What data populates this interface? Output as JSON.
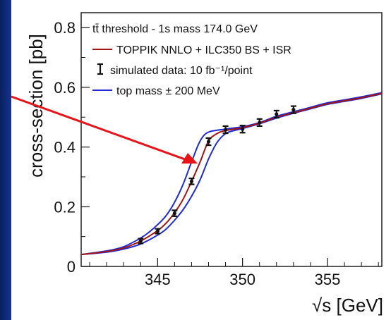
{
  "chart_data": {
    "type": "line",
    "title": "",
    "xlabel": "√s [GeV]",
    "ylabel": "cross-section [pb]",
    "xlim": [
      340.5,
      358.2
    ],
    "ylim": [
      0,
      0.85
    ],
    "x_ticks": [
      345,
      350,
      355
    ],
    "y_ticks": [
      0,
      0.2,
      0.4,
      0.6,
      0.8
    ],
    "x_tick_labels": [
      "345",
      "350",
      "355"
    ],
    "y_tick_labels": [
      "0",
      "0.2",
      "0.4",
      "0.6",
      "0.8"
    ],
    "legend": {
      "placement": "top-left",
      "header": "tt̄ threshold - 1s mass 174.0 GeV",
      "entries": [
        {
          "label": "TOPPIK NNLO + ILC350 BS + ISR",
          "color": "#a31515",
          "kind": "line"
        },
        {
          "label": "simulated data: 10 fb⁻¹/point",
          "color": "#111111",
          "kind": "errorbar"
        },
        {
          "label": "top mass ± 200 MeV",
          "color": "#1f2bd6",
          "kind": "line"
        }
      ]
    },
    "series": [
      {
        "name": "TOPPIK NNLO + ILC350 BS + ISR",
        "color": "#a31515",
        "x": [
          340.5,
          342,
          343,
          344,
          345,
          345.5,
          346,
          346.5,
          347,
          347.5,
          348,
          348.5,
          349,
          350,
          351,
          352,
          353,
          354,
          355,
          356,
          357,
          358.2
        ],
        "y": [
          0.04,
          0.05,
          0.062,
          0.085,
          0.12,
          0.145,
          0.18,
          0.225,
          0.285,
          0.35,
          0.42,
          0.445,
          0.455,
          0.465,
          0.48,
          0.5,
          0.515,
          0.53,
          0.545,
          0.555,
          0.565,
          0.58
        ]
      },
      {
        "name": "top mass + 200 MeV",
        "color": "#1f2bd6",
        "x": [
          340.5,
          342,
          343,
          344,
          345,
          345.5,
          346,
          346.5,
          347,
          347.5,
          348,
          348.5,
          349,
          349.5,
          350,
          351,
          352,
          353,
          354,
          355,
          356,
          357,
          358.2
        ],
        "y": [
          0.04,
          0.048,
          0.058,
          0.075,
          0.105,
          0.125,
          0.155,
          0.19,
          0.235,
          0.29,
          0.36,
          0.415,
          0.445,
          0.455,
          0.462,
          0.478,
          0.497,
          0.513,
          0.528,
          0.543,
          0.553,
          0.563,
          0.578
        ]
      },
      {
        "name": "top mass - 200 MeV",
        "color": "#1f2bd6",
        "x": [
          340.5,
          342,
          343,
          344,
          344.5,
          345,
          345.5,
          346,
          346.5,
          347,
          347.5,
          348,
          349,
          350,
          351,
          352,
          353,
          354,
          355,
          356,
          357,
          358.2
        ],
        "y": [
          0.04,
          0.052,
          0.066,
          0.095,
          0.115,
          0.14,
          0.17,
          0.215,
          0.275,
          0.35,
          0.42,
          0.45,
          0.46,
          0.468,
          0.482,
          0.503,
          0.518,
          0.533,
          0.548,
          0.558,
          0.568,
          0.582
        ]
      }
    ],
    "data_points": {
      "name": "simulated data: 10 fb⁻¹/point",
      "x": [
        344,
        345,
        346,
        347,
        348,
        349,
        350,
        351,
        352,
        353
      ],
      "y": [
        0.085,
        0.118,
        0.178,
        0.285,
        0.418,
        0.458,
        0.46,
        0.482,
        0.51,
        0.525
      ],
      "yerr": [
        0.008,
        0.008,
        0.01,
        0.01,
        0.012,
        0.012,
        0.012,
        0.012,
        0.012,
        0.012
      ]
    }
  }
}
